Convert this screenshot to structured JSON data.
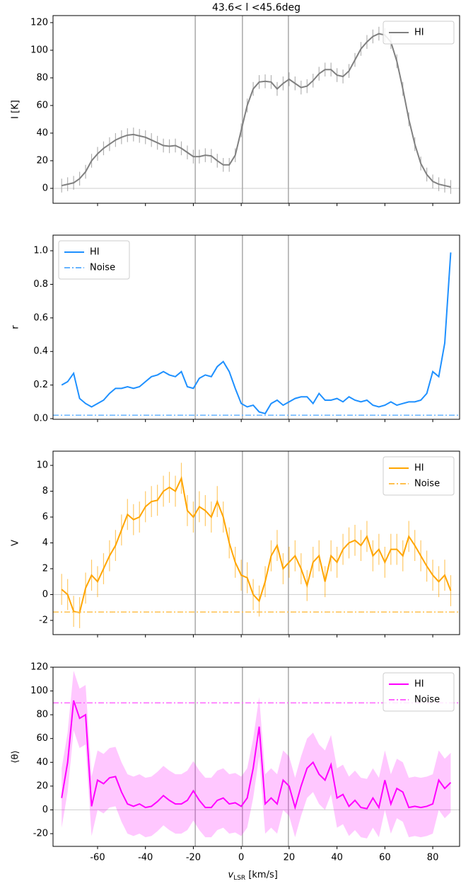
{
  "chart_data": [
    {
      "type": "line",
      "title": "43.6< l <45.6deg",
      "y_label": "I [K]",
      "x": [
        -75,
        -72.5,
        -70,
        -67.5,
        -65,
        -62.5,
        -60,
        -57.5,
        -55,
        -52.5,
        -50,
        -47.5,
        -45,
        -42.5,
        -40,
        -37.5,
        -35,
        -32.5,
        -30,
        -27.5,
        -25,
        -22.5,
        -20,
        -17.5,
        -15,
        -12.5,
        -10,
        -7.5,
        -5,
        -2.5,
        0,
        2.5,
        5,
        7.5,
        10,
        12.5,
        15,
        17.5,
        20,
        22.5,
        25,
        27.5,
        30,
        32.5,
        35,
        37.5,
        40,
        42.5,
        45,
        47.5,
        50,
        52.5,
        55,
        57.5,
        60,
        62.5,
        65,
        67.5,
        70,
        72.5,
        75,
        77.5,
        80,
        82.5,
        85,
        87.5
      ],
      "series": [
        {
          "name": "HI",
          "color": "#808080",
          "yerr": 5,
          "values": [
            2,
            3,
            4,
            7,
            12,
            20,
            25,
            29,
            32,
            35,
            37,
            38.5,
            39,
            38,
            37,
            35,
            33,
            31,
            30.5,
            31,
            29,
            26,
            23,
            23,
            24,
            23.5,
            20,
            17,
            17,
            24,
            42,
            60,
            72,
            77,
            77.5,
            77,
            72,
            76,
            79,
            76,
            73,
            74,
            78,
            83,
            86,
            86,
            82,
            81,
            85,
            93,
            101,
            106,
            110,
            112,
            111,
            106,
            92,
            72,
            50,
            32,
            18,
            10,
            5,
            3,
            2,
            1
          ]
        }
      ],
      "xlim": [
        -78.6,
        91.2
      ],
      "xticks": [
        -60,
        -40,
        -20,
        0,
        20,
        40,
        60,
        80
      ],
      "xticklabels": false,
      "ylim": [
        -10.8,
        125.1
      ],
      "yticks": [
        0,
        20,
        40,
        60,
        80,
        100,
        120
      ],
      "hline": 0,
      "vlines": [
        -19.2,
        0.5,
        19.7
      ],
      "legend": "upper right"
    },
    {
      "type": "line",
      "y_label": "r",
      "x": [
        -75,
        -72.5,
        -70,
        -67.5,
        -65,
        -62.5,
        -60,
        -57.5,
        -55,
        -52.5,
        -50,
        -47.5,
        -45,
        -42.5,
        -40,
        -37.5,
        -35,
        -32.5,
        -30,
        -27.5,
        -25,
        -22.5,
        -20,
        -17.5,
        -15,
        -12.5,
        -10,
        -7.5,
        -5,
        -2.5,
        0,
        2.5,
        5,
        7.5,
        10,
        12.5,
        15,
        17.5,
        20,
        22.5,
        25,
        27.5,
        30,
        32.5,
        35,
        37.5,
        40,
        42.5,
        45,
        47.5,
        50,
        52.5,
        55,
        57.5,
        60,
        62.5,
        65,
        67.5,
        70,
        72.5,
        75,
        77.5,
        80,
        82.5,
        85,
        87.5
      ],
      "series": [
        {
          "name": "HI",
          "color": "#1e90ff",
          "values": [
            0.2,
            0.22,
            0.27,
            0.12,
            0.09,
            0.07,
            0.09,
            0.11,
            0.15,
            0.18,
            0.18,
            0.19,
            0.18,
            0.19,
            0.22,
            0.25,
            0.26,
            0.28,
            0.26,
            0.25,
            0.28,
            0.19,
            0.18,
            0.24,
            0.26,
            0.25,
            0.31,
            0.34,
            0.28,
            0.18,
            0.09,
            0.07,
            0.08,
            0.04,
            0.03,
            0.09,
            0.11,
            0.08,
            0.1,
            0.12,
            0.13,
            0.13,
            0.09,
            0.15,
            0.11,
            0.11,
            0.12,
            0.1,
            0.13,
            0.11,
            0.1,
            0.11,
            0.08,
            0.07,
            0.08,
            0.1,
            0.08,
            0.09,
            0.1,
            0.1,
            0.11,
            0.15,
            0.28,
            0.25,
            0.45,
            0.99
          ]
        },
        {
          "name": "Noise",
          "color": "#66b3ff",
          "level": 0.02
        }
      ],
      "xlim": [
        -78.6,
        91.2
      ],
      "xticks": [
        -60,
        -40,
        -20,
        0,
        20,
        40,
        60,
        80
      ],
      "xticklabels": false,
      "ylim": [
        -0.004,
        1.093
      ],
      "yticks": [
        {
          "value": 0,
          "label": "0.0"
        },
        {
          "value": 0.2,
          "label": "0.2"
        },
        {
          "value": 0.4,
          "label": "0.4"
        },
        {
          "value": 0.6,
          "label": "0.6"
        },
        {
          "value": 0.8,
          "label": "0.8"
        },
        {
          "value": 1,
          "label": "1.0"
        }
      ],
      "vlines": [
        -19.2,
        0.5,
        19.7
      ],
      "legend": "upper left"
    },
    {
      "type": "line",
      "y_label": "V",
      "x": [
        -75,
        -72.5,
        -70,
        -67.5,
        -65,
        -62.5,
        -60,
        -57.5,
        -55,
        -52.5,
        -50,
        -47.5,
        -45,
        -42.5,
        -40,
        -37.5,
        -35,
        -32.5,
        -30,
        -27.5,
        -25,
        -22.5,
        -20,
        -17.5,
        -15,
        -12.5,
        -10,
        -7.5,
        -5,
        -2.5,
        0,
        2.5,
        5,
        7.5,
        10,
        12.5,
        15,
        17.5,
        20,
        22.5,
        25,
        27.5,
        30,
        32.5,
        35,
        37.5,
        40,
        42.5,
        45,
        47.5,
        50,
        52.5,
        55,
        57.5,
        60,
        62.5,
        65,
        67.5,
        70,
        72.5,
        75,
        77.5,
        80,
        82.5,
        85,
        87.5
      ],
      "series": [
        {
          "name": "HI",
          "color": "#ffa500",
          "yerr": 1.2,
          "values": [
            0.4,
            0.0,
            -1.3,
            -1.4,
            0.5,
            1.5,
            1.0,
            2.0,
            3.0,
            3.8,
            5.0,
            6.2,
            5.8,
            6.0,
            6.8,
            7.2,
            7.3,
            8.0,
            8.3,
            8.0,
            9.0,
            6.5,
            6.0,
            6.8,
            6.5,
            6.0,
            7.2,
            6.0,
            4.0,
            2.5,
            1.5,
            1.3,
            0.0,
            -0.5,
            1.0,
            3.0,
            3.8,
            2.0,
            2.5,
            3.0,
            2.0,
            0.7,
            2.5,
            3.0,
            1.0,
            3.0,
            2.5,
            3.5,
            4.0,
            4.2,
            3.8,
            4.5,
            3.0,
            3.5,
            2.5,
            3.5,
            3.5,
            3.0,
            4.5,
            3.8,
            3.0,
            2.2,
            1.5,
            1.0,
            1.5,
            0.3
          ]
        },
        {
          "name": "Noise",
          "color": "#ffc04d",
          "level": -1.35
        }
      ],
      "xlim": [
        -78.6,
        91.2
      ],
      "xticks": [
        -60,
        -40,
        -20,
        0,
        20,
        40,
        60,
        80
      ],
      "xticklabels": false,
      "ylim": [
        -3.1,
        11.1
      ],
      "yticks": [
        -2,
        0,
        2,
        4,
        6,
        8,
        10
      ],
      "hline": 0,
      "vlines": [
        -19.2,
        0.5,
        19.7
      ],
      "legend": "upper right"
    },
    {
      "type": "line",
      "y_label": "⟨θ⟩",
      "x_label": [
        "v",
        "LSR",
        " [km/s]"
      ],
      "x": [
        -75,
        -72.5,
        -70,
        -67.5,
        -65,
        -62.5,
        -60,
        -57.5,
        -55,
        -52.5,
        -50,
        -47.5,
        -45,
        -42.5,
        -40,
        -37.5,
        -35,
        -32.5,
        -30,
        -27.5,
        -25,
        -22.5,
        -20,
        -17.5,
        -15,
        -12.5,
        -10,
        -7.5,
        -5,
        -2.5,
        0,
        2.5,
        5,
        7.5,
        10,
        12.5,
        15,
        17.5,
        20,
        22.5,
        25,
        27.5,
        30,
        32.5,
        35,
        37.5,
        40,
        42.5,
        45,
        47.5,
        50,
        52.5,
        55,
        57.5,
        60,
        62.5,
        65,
        67.5,
        70,
        72.5,
        75,
        77.5,
        80,
        82.5,
        85,
        87.5
      ],
      "series": [
        {
          "name": "HI",
          "color": "#ff00ff",
          "spread": 25,
          "values": [
            10,
            40,
            92,
            77,
            80,
            3,
            25,
            22,
            27,
            28,
            15,
            5,
            3,
            5,
            2,
            3,
            7,
            12,
            8,
            5,
            5,
            8,
            16,
            8,
            2,
            2,
            8,
            10,
            5,
            6,
            3,
            10,
            35,
            70,
            5,
            10,
            5,
            25,
            20,
            2,
            20,
            35,
            40,
            30,
            25,
            38,
            10,
            13,
            3,
            8,
            2,
            1,
            10,
            2,
            25,
            5,
            18,
            15,
            2,
            3,
            2,
            3,
            5,
            25,
            18,
            23
          ]
        },
        {
          "name": "Noise",
          "color": "#ff66ff",
          "level": 90
        }
      ],
      "xlim": [
        -78.6,
        91.2
      ],
      "xticks": [
        -60,
        -40,
        -20,
        0,
        20,
        40,
        60,
        80
      ],
      "xticklabels": true,
      "ylim": [
        -30.7,
        120
      ],
      "yticks": [
        -20,
        0,
        20,
        40,
        60,
        80,
        100,
        120
      ],
      "hline": 0,
      "vlines": [
        -19.2,
        0.5,
        19.7
      ],
      "legend": "upper right"
    }
  ]
}
